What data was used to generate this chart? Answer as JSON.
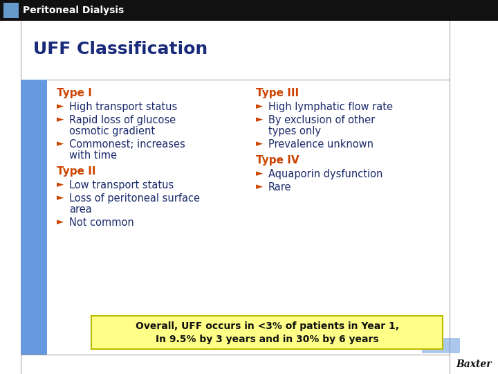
{
  "title": "UFF Classification",
  "header": "Peritoneal Dialysis",
  "header_bg": "#111111",
  "header_text_color": "#ffffff",
  "header_blue_box": "#6699cc",
  "slide_bg": "#ffffff",
  "left_bar_color": "#6699dd",
  "border_color": "#999999",
  "type_color": "#cc4400",
  "bullet_color": "#1a2a6b",
  "title_color": "#1a2a7b",
  "highlight_bg": "#ffff88",
  "baxter_color": "#111111",
  "type1_label": "Type I",
  "type1_bullets": [
    [
      "High transport status"
    ],
    [
      "Rapid loss of glucose",
      "osmotic gradient"
    ],
    [
      "Commonest; increases",
      "with time"
    ]
  ],
  "type2_label": "Type II",
  "type2_bullets": [
    [
      "Low transport status"
    ],
    [
      "Loss of peritoneal surface",
      "area"
    ],
    [
      "Not common"
    ]
  ],
  "type3_label": "Type III",
  "type3_bullets": [
    [
      "High lymphatic flow rate"
    ],
    [
      "By exclusion of other",
      "types only"
    ],
    [
      "Prevalence unknown"
    ]
  ],
  "type4_label": "Type IV",
  "type4_bullets": [
    [
      "Aquaporin dysfunction"
    ],
    [
      "Rare"
    ]
  ],
  "highlight_line1": "Overall, UFF occurs in <3% of patients in Year 1,",
  "highlight_line2": "In 9.5% by 3 years and in 30% by 6 years"
}
